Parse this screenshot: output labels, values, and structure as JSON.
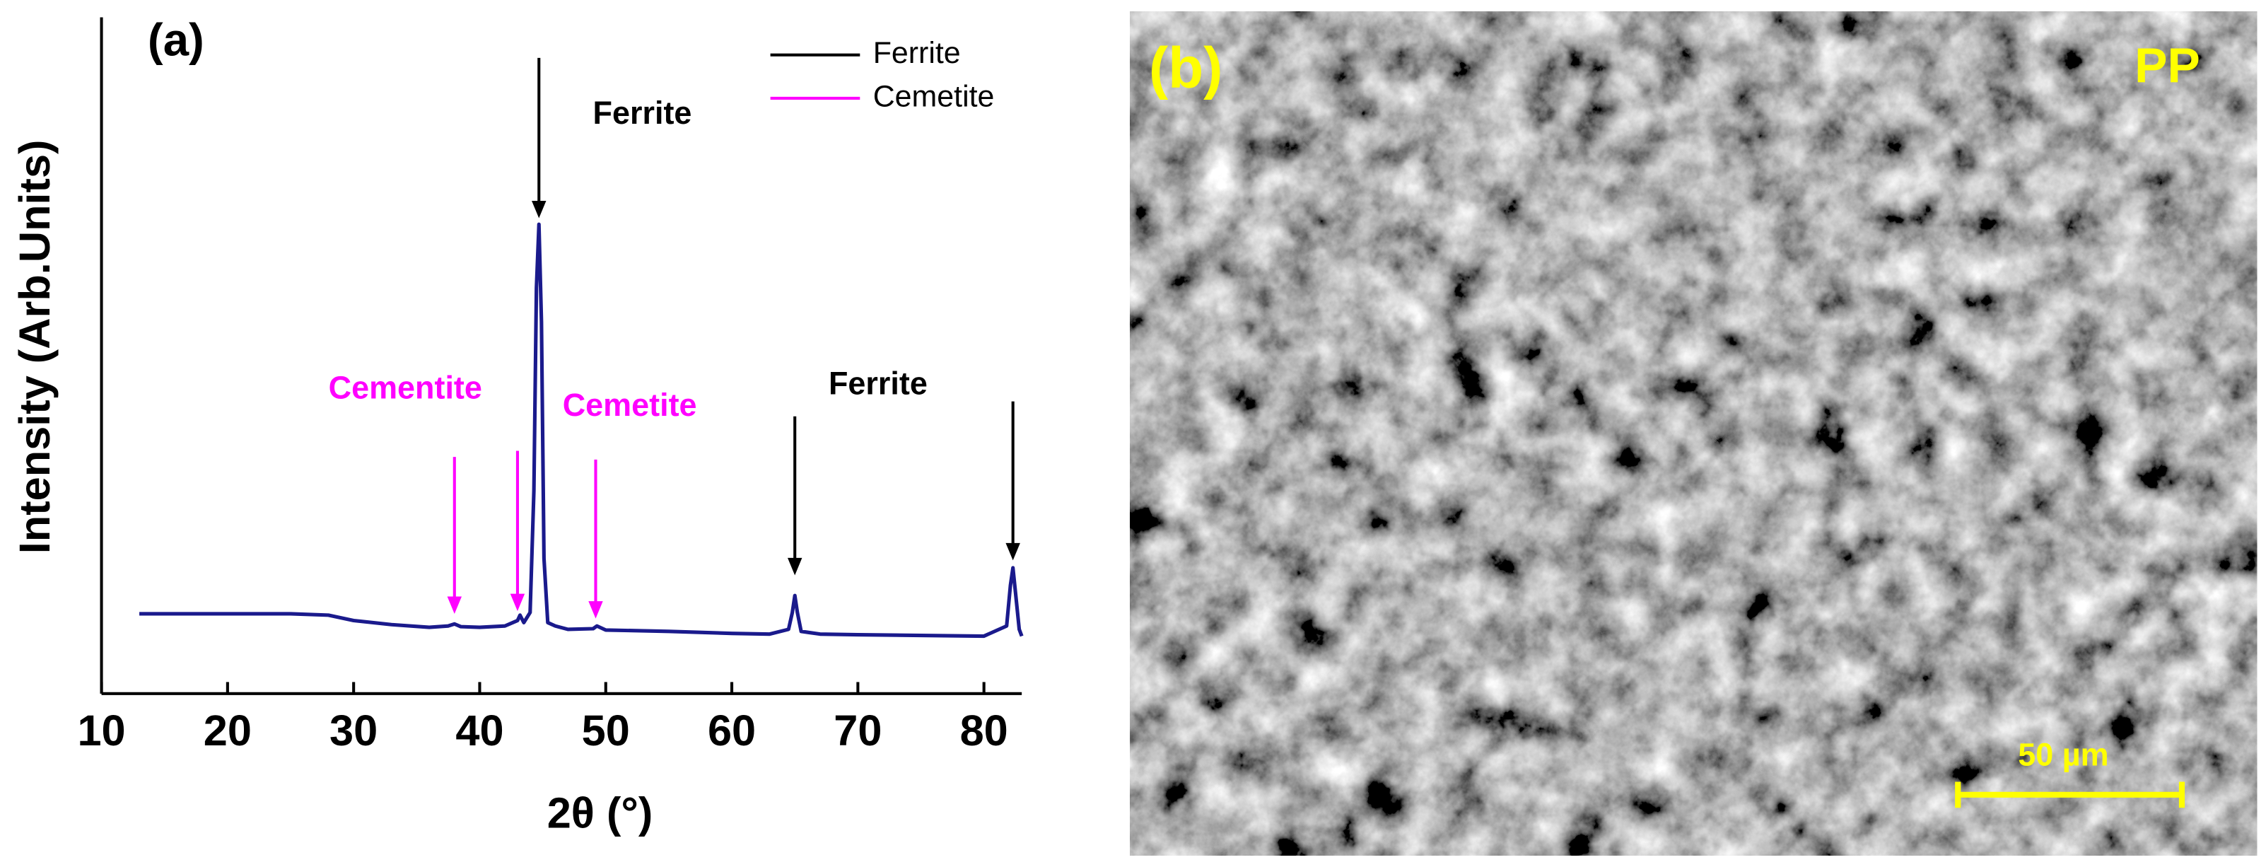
{
  "chart_data": {
    "type": "line",
    "panel_label": "(a)",
    "x_label": "2θ (°)",
    "y_label": "Intensity (Arb.Units)",
    "xlim": [
      10,
      83
    ],
    "xticks": [
      10,
      20,
      30,
      40,
      50,
      60,
      70,
      80
    ],
    "ylim": [
      0,
      100
    ],
    "yticks": [],
    "x": [
      13,
      15,
      20,
      25,
      28,
      30,
      33,
      36,
      37.5,
      38,
      38.5,
      40,
      42,
      43,
      43.2,
      43.5,
      44,
      44.3,
      44.5,
      44.7,
      44.9,
      45.1,
      45.4,
      46,
      47,
      49,
      49.3,
      50,
      55,
      60,
      63,
      64.5,
      64.8,
      65,
      65.2,
      65.5,
      67,
      70,
      75,
      80,
      81.8,
      82.1,
      82.3,
      82.5,
      82.8,
      83
    ],
    "series": [
      {
        "color": "#1a1a8c",
        "values": [
          11.8,
          11.8,
          11.8,
          11.8,
          11.6,
          10.8,
          10.2,
          9.8,
          10.0,
          10.3,
          9.9,
          9.8,
          10.0,
          10.8,
          11.6,
          10.5,
          12,
          30,
          60,
          69.4,
          55,
          20,
          10.5,
          10,
          9.5,
          9.6,
          10,
          9.4,
          9.2,
          8.9,
          8.8,
          9.5,
          12,
          14.5,
          12,
          9.2,
          8.8,
          8.7,
          8.6,
          8.5,
          10,
          16,
          18.6,
          15,
          9.5,
          8.5
        ]
      }
    ],
    "legend": [
      {
        "name": "Ferrite",
        "color": "#000000"
      },
      {
        "name": "Cemetite",
        "color": "#ff00ff"
      }
    ],
    "annotations": [
      {
        "text": "Ferrite",
        "x": 52.9,
        "y": 85.5,
        "color": "#000000"
      },
      {
        "text": "Cementite",
        "x": 34.1,
        "y": 44.9,
        "color": "#ff00ff"
      },
      {
        "text": "Cemetite",
        "x": 51.9,
        "y": 42.3,
        "color": "#ff00ff"
      },
      {
        "text": "Ferrite",
        "x": 71.6,
        "y": 45.5,
        "color": "#000000"
      }
    ],
    "arrows": [
      {
        "x": 44.7,
        "y_from": 94,
        "y_to": 70.3,
        "color": "#000000"
      },
      {
        "x": 65,
        "y_from": 41,
        "y_to": 17.5,
        "color": "#000000"
      },
      {
        "x": 82.3,
        "y_from": 43.2,
        "y_to": 19.7,
        "color": "#000000"
      },
      {
        "x": 38,
        "y_from": 35,
        "y_to": 11.8,
        "color": "#ff00ff"
      },
      {
        "x": 43,
        "y_from": 35.9,
        "y_to": 12.2,
        "color": "#ff00ff"
      },
      {
        "x": 49.2,
        "y_from": 34.6,
        "y_to": 11.1,
        "color": "#ff00ff"
      }
    ]
  },
  "panel_b": {
    "label": "(b)",
    "tag": "PP",
    "scale_bar": "50 µm"
  }
}
